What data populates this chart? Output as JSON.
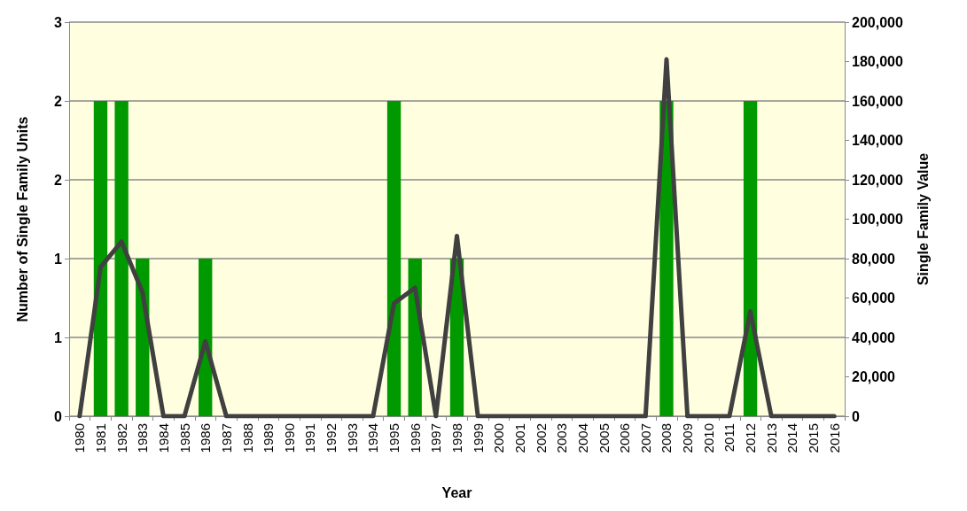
{
  "chart_data": {
    "type": "bar",
    "xlabel": "Year",
    "ylabel": "Number of Single Family Units",
    "y2label": "Single Family Value",
    "categories": [
      "1980",
      "1981",
      "1982",
      "1983",
      "1984",
      "1985",
      "1986",
      "1987",
      "1988",
      "1989",
      "1990",
      "1991",
      "1992",
      "1993",
      "1994",
      "1995",
      "1996",
      "1997",
      "1998",
      "1999",
      "2000",
      "2001",
      "2002",
      "2003",
      "2004",
      "2005",
      "2006",
      "2007",
      "2008",
      "2009",
      "2010",
      "2011",
      "2012",
      "2013",
      "2014",
      "2015",
      "2016"
    ],
    "series": [
      {
        "color": "#009900",
        "values": [
          0,
          2,
          2,
          1,
          0,
          0,
          1,
          0,
          0,
          0,
          0,
          0,
          0,
          0,
          0,
          2,
          1,
          0,
          1,
          0,
          0,
          0,
          0,
          0,
          0,
          0,
          0,
          0,
          2,
          0,
          0,
          0,
          2,
          0,
          0,
          0,
          0
        ]
      },
      {
        "type": "line",
        "axis": "y2",
        "color": "#404040",
        "values": [
          0,
          75700,
          88600,
          62800,
          0,
          0,
          38000,
          0,
          0,
          0,
          0,
          0,
          0,
          0,
          0,
          57300,
          65200,
          0,
          91500,
          0,
          0,
          0,
          0,
          0,
          0,
          0,
          0,
          0,
          181100,
          0,
          0,
          0,
          53200,
          0,
          0,
          0,
          0
        ]
      }
    ],
    "ylim": [
      0,
      2.5
    ],
    "yticks": [
      {
        "value": 0,
        "label": "0"
      },
      {
        "value": 0.5,
        "label": "1"
      },
      {
        "value": 1,
        "label": "1"
      },
      {
        "value": 1.5,
        "label": "2"
      },
      {
        "value": 2,
        "label": "2"
      },
      {
        "value": 2.5,
        "label": "3"
      }
    ],
    "y2lim": [
      0,
      200000
    ],
    "y2ticks": [
      0,
      {
        "value": 20000,
        "label": "20,000"
      },
      {
        "value": 40000,
        "label": "40,000"
      },
      {
        "value": 60000,
        "label": "60,000"
      },
      {
        "value": 80000,
        "label": "80,000"
      },
      {
        "value": 100000,
        "label": "100,000"
      },
      {
        "value": 120000,
        "label": "120,000"
      },
      {
        "value": 140000,
        "label": "140,000"
      },
      {
        "value": 160000,
        "label": "160,000"
      },
      {
        "value": 180000,
        "label": "180,000"
      },
      {
        "value": 200000,
        "label": "200,000"
      }
    ],
    "grid": "y",
    "marker": "none",
    "line_style": "solid"
  }
}
